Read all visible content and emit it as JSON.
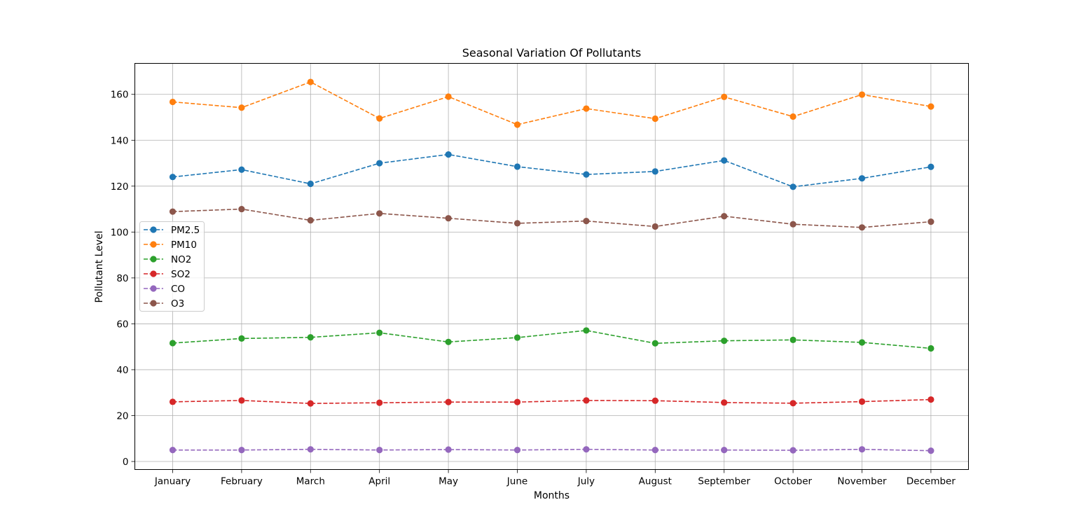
{
  "chart_data": {
    "type": "line",
    "title": "Seasonal Variation Of Pollutants",
    "xlabel": "Months",
    "ylabel": "Pollutant Level",
    "categories": [
      "January",
      "February",
      "March",
      "April",
      "May",
      "June",
      "July",
      "August",
      "September",
      "October",
      "November",
      "December"
    ],
    "yticks": [
      0,
      20,
      40,
      60,
      80,
      100,
      120,
      140,
      160
    ],
    "ylim": [
      -3.5,
      173.5
    ],
    "grid": true,
    "line_style": "dashed",
    "marker": "circle",
    "legend_position": "center-left",
    "series": [
      {
        "name": "PM2.5",
        "color": "#1f77b4",
        "values": [
          124,
          127.2,
          121,
          130,
          133.8,
          128.5,
          125.1,
          126.4,
          131.2,
          119.7,
          123.4,
          128.4
        ]
      },
      {
        "name": "PM10",
        "color": "#ff7f0e",
        "values": [
          156.7,
          154.2,
          165.4,
          149.5,
          159,
          146.8,
          153.8,
          149.4,
          158.9,
          150.3,
          159.9,
          154.7
        ]
      },
      {
        "name": "NO2",
        "color": "#2ca02c",
        "values": [
          51.6,
          53.6,
          54.1,
          56.1,
          52.1,
          54,
          57.1,
          51.5,
          52.6,
          53,
          51.9,
          49.3
        ]
      },
      {
        "name": "SO2",
        "color": "#d62728",
        "values": [
          26,
          26.6,
          25.3,
          25.6,
          25.9,
          25.9,
          26.6,
          26.5,
          25.7,
          25.4,
          26.1,
          27
        ]
      },
      {
        "name": "CO",
        "color": "#9467bd",
        "values": [
          5,
          5,
          5.3,
          5,
          5.2,
          5,
          5.3,
          5,
          5,
          4.9,
          5.3,
          4.7
        ]
      },
      {
        "name": "O3",
        "color": "#8c564b",
        "values": [
          108.9,
          110,
          105.1,
          108.1,
          106,
          103.8,
          104.8,
          102.4,
          106.9,
          103.4,
          102,
          104.5
        ]
      }
    ]
  }
}
